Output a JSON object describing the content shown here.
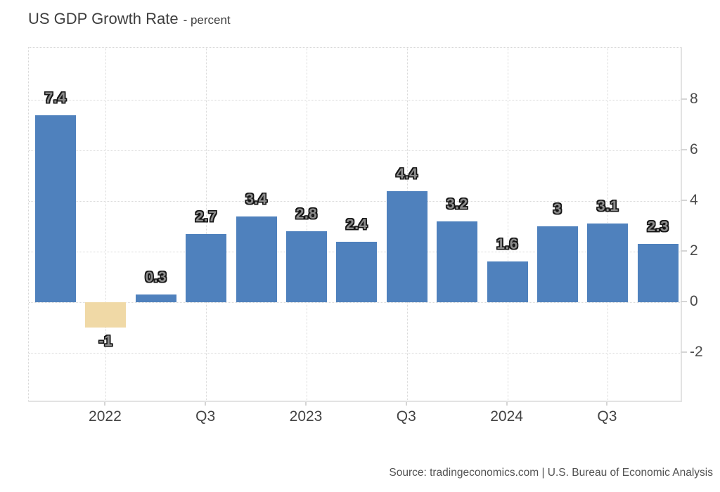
{
  "header": {
    "title": "US GDP Growth Rate",
    "subtitle": "- percent"
  },
  "footer": {
    "source": "Source: tradingeconomics.com | U.S. Bureau of Economic Analysis"
  },
  "chart_data": {
    "type": "bar",
    "title": "US GDP Growth Rate",
    "unit_label": "percent",
    "values": [
      7.4,
      -1,
      0.3,
      2.7,
      3.4,
      2.8,
      2.4,
      4.4,
      3.2,
      1.6,
      3,
      3.1,
      2.3
    ],
    "bar_labels": [
      "7.4",
      "-1",
      "0.3",
      "2.7",
      "3.4",
      "2.8",
      "2.4",
      "4.4",
      "3.2",
      "1.6",
      "3",
      "3.1",
      "2.3"
    ],
    "x_ticks": [
      {
        "bar_index": 1,
        "label": "2022"
      },
      {
        "bar_index": 3,
        "label": "Q3"
      },
      {
        "bar_index": 5,
        "label": "2023"
      },
      {
        "bar_index": 7,
        "label": "Q3"
      },
      {
        "bar_index": 9,
        "label": "2024"
      },
      {
        "bar_index": 11,
        "label": "Q3"
      }
    ],
    "y_ticks": [
      8,
      6,
      4,
      2,
      0,
      -2
    ],
    "y_tick_labels": [
      "8",
      "6",
      "4",
      "2",
      "0",
      "-2"
    ],
    "ylim": [
      -4,
      10.1
    ],
    "grid": true,
    "legend_position": "none",
    "bar_color": "#4f81bd",
    "negative_bar_color": "#f0d9a6"
  }
}
